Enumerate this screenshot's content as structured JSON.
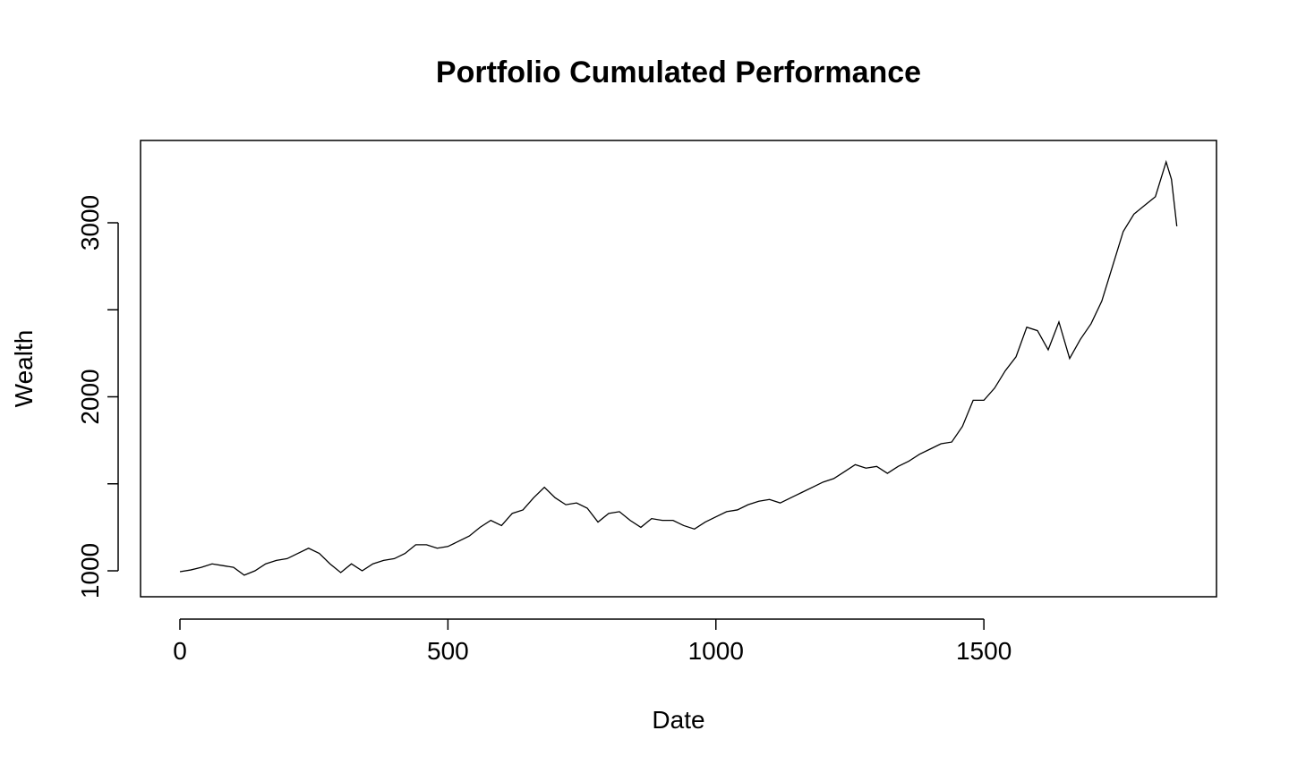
{
  "chart_data": {
    "type": "line",
    "title": "Portfolio Cumulated Performance",
    "x_label": "Date",
    "y_label": "Wealth",
    "x": [
      0,
      20,
      40,
      60,
      80,
      100,
      120,
      140,
      160,
      180,
      200,
      220,
      240,
      260,
      280,
      300,
      320,
      340,
      360,
      380,
      400,
      420,
      440,
      460,
      480,
      500,
      520,
      540,
      560,
      580,
      600,
      620,
      640,
      660,
      680,
      700,
      720,
      740,
      760,
      780,
      800,
      820,
      840,
      860,
      880,
      900,
      920,
      940,
      960,
      980,
      1000,
      1020,
      1040,
      1060,
      1080,
      1100,
      1120,
      1140,
      1160,
      1180,
      1200,
      1220,
      1240,
      1260,
      1280,
      1300,
      1320,
      1340,
      1360,
      1380,
      1400,
      1420,
      1440,
      1460,
      1480,
      1500,
      1520,
      1540,
      1560,
      1580,
      1600,
      1620,
      1640,
      1660,
      1680,
      1700,
      1720,
      1740,
      1760,
      1780,
      1800,
      1820,
      1840,
      1850,
      1860
    ],
    "series": [
      {
        "name": "Wealth",
        "color": "#000000",
        "values": [
          995,
          1005,
          1020,
          1040,
          1030,
          1020,
          975,
          1000,
          1040,
          1060,
          1070,
          1100,
          1130,
          1100,
          1040,
          990,
          1040,
          1000,
          1040,
          1060,
          1070,
          1100,
          1150,
          1150,
          1130,
          1140,
          1170,
          1200,
          1250,
          1290,
          1260,
          1330,
          1350,
          1420,
          1480,
          1420,
          1380,
          1390,
          1360,
          1280,
          1330,
          1340,
          1290,
          1250,
          1300,
          1290,
          1290,
          1260,
          1240,
          1280,
          1310,
          1340,
          1350,
          1380,
          1400,
          1410,
          1390,
          1420,
          1450,
          1480,
          1510,
          1530,
          1570,
          1610,
          1590,
          1600,
          1560,
          1600,
          1630,
          1670,
          1700,
          1730,
          1740,
          1830,
          1980,
          1980,
          2050,
          2150,
          2230,
          2400,
          2380,
          2270,
          2430,
          2220,
          2330,
          2420,
          2550,
          2750,
          2950,
          3050,
          3100,
          3150,
          3350,
          3250,
          2980
        ]
      }
    ],
    "xlim": [
      -73.5,
      1934
    ],
    "ylim": [
      851,
      3473
    ],
    "xticks": [
      0,
      500,
      1000,
      1500
    ],
    "yticks": [
      1000,
      2000,
      3000
    ],
    "yminor_ticks": [
      1500,
      2500
    ]
  }
}
